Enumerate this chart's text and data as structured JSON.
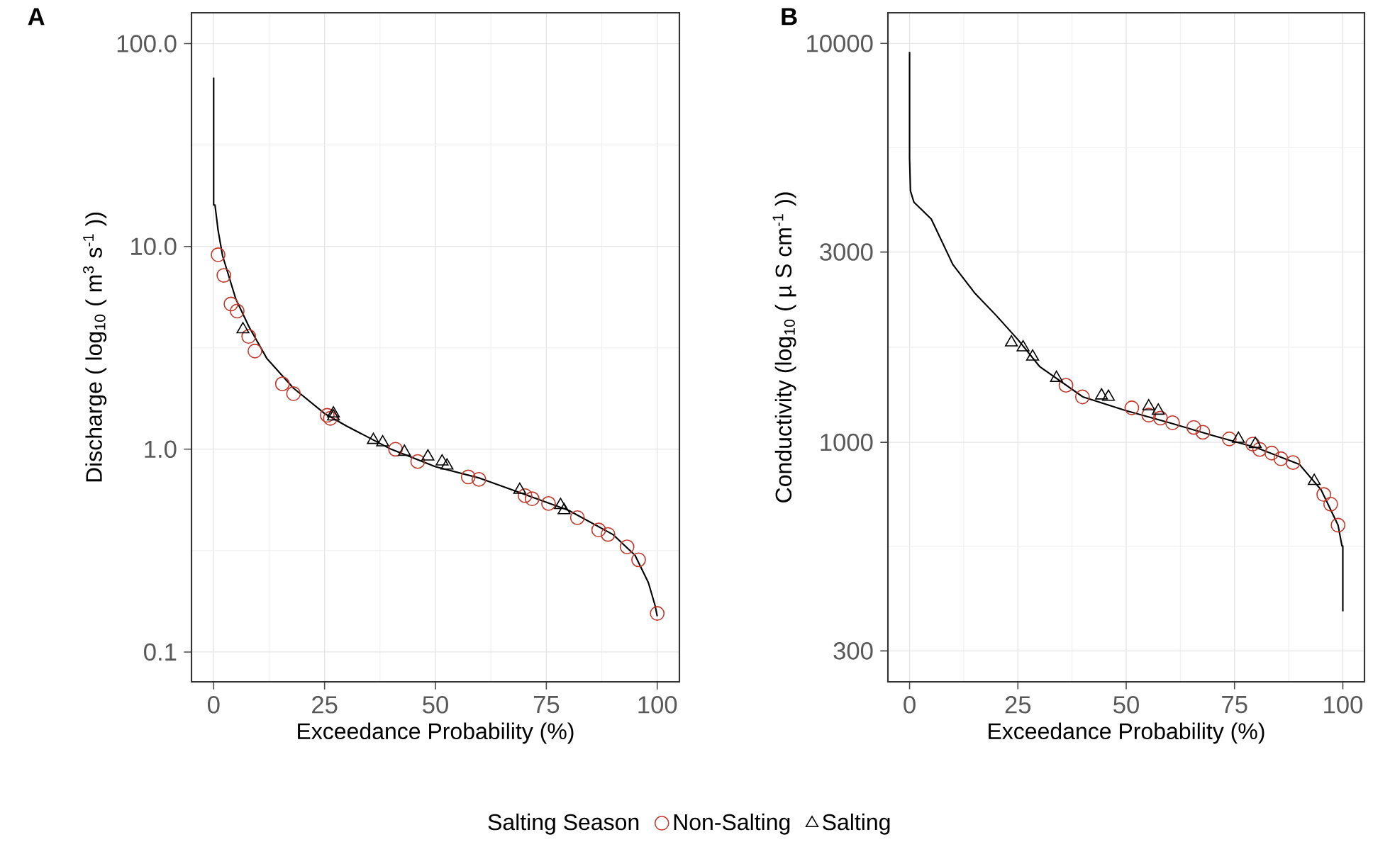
{
  "chart_data": [
    {
      "type": "line",
      "title": "A",
      "xlabel": "Exceedance Probability (%)",
      "ylabel": "Discharge ( log$_{10}$ ( m$^{3}$ s$^{-1}$ ))",
      "log": "y",
      "grid": true,
      "legend": "bottom",
      "legend_title": "Salting Season",
      "xlim": [
        -5,
        105
      ],
      "ylim": [
        0.0713,
        142
      ],
      "xticks": [
        0,
        25,
        50,
        75,
        100
      ],
      "yticks": [
        0.1,
        {
          "value": 1,
          "label": "1.0"
        },
        {
          "value": 10,
          "label": "10.0"
        },
        {
          "value": 100,
          "label": "100.0"
        }
      ],
      "series": [
        {
          "color": "#000000",
          "x": [
            0,
            0,
            0.3,
            1,
            2,
            5,
            8,
            12,
            18,
            25,
            30,
            40,
            50,
            60,
            70,
            80,
            90,
            95,
            98,
            99.5,
            100
          ],
          "values": [
            68,
            16,
            16,
            12,
            9,
            5.5,
            4,
            2.8,
            2,
            1.5,
            1.3,
            1.0,
            0.82,
            0.72,
            0.6,
            0.5,
            0.38,
            0.3,
            0.22,
            0.17,
            0.15
          ]
        },
        {
          "type": "scatter",
          "name": "Non-Salting",
          "color": "#c0392b",
          "marker": "circle",
          "x": [
            1,
            2.3,
            3.9,
            5.3,
            7.9,
            9.3,
            15.5,
            18,
            25.6,
            26.3,
            41,
            46,
            57.4,
            59.8,
            70.2,
            71.8,
            75.5,
            82,
            86.8,
            88.9,
            93.2,
            95.8,
            100
          ],
          "values": [
            9.1,
            7.2,
            5.2,
            4.8,
            3.6,
            3.05,
            2.1,
            1.88,
            1.47,
            1.42,
            1.0,
            0.87,
            0.73,
            0.71,
            0.59,
            0.57,
            0.54,
            0.46,
            0.4,
            0.38,
            0.33,
            0.285,
            0.155
          ]
        },
        {
          "type": "scatter",
          "name": "Salting",
          "color": "#000000",
          "marker": "triangle",
          "x": [
            6.6,
            27,
            27,
            36,
            38.1,
            43,
            48.3,
            51.5,
            52.6,
            69,
            78.2,
            79
          ],
          "values": [
            3.9,
            1.5,
            1.45,
            1.11,
            1.08,
            0.97,
            0.92,
            0.87,
            0.83,
            0.63,
            0.53,
            0.5
          ]
        }
      ]
    },
    {
      "type": "line",
      "title": "B",
      "xlabel": "Exceedance Probability (%)",
      "ylabel": "Conductivity (log$_{10}$ ( µ S cm$^{-1}$ ))",
      "log": "y",
      "grid": true,
      "xlim": [
        -5,
        105
      ],
      "ylim": [
        251,
        11940
      ],
      "xticks": [
        0,
        25,
        50,
        75,
        100
      ],
      "yticks": [
        300,
        1000,
        3000,
        10000
      ],
      "series": [
        {
          "color": "#000000",
          "x": [
            0,
            0,
            0.2,
            1,
            5,
            10,
            15,
            20,
            25,
            30,
            40,
            50,
            60,
            70,
            80,
            90,
            95,
            98.9,
            99.8,
            100,
            100
          ],
          "values": [
            9520,
            5150,
            4270,
            4000,
            3630,
            2790,
            2370,
            2080,
            1810,
            1550,
            1300,
            1200,
            1120,
            1040,
            970,
            880,
            760,
            620,
            550,
            550,
            377
          ]
        },
        {
          "type": "scatter",
          "color": "#c0392b",
          "marker": "circle",
          "x": [
            36.1,
            39.9,
            51.3,
            55.2,
            57.9,
            60.7,
            65.6,
            67.7,
            73.8,
            79.2,
            80.8,
            83.6,
            85.7,
            88.5,
            95.6,
            97.2,
            98.9
          ],
          "values": [
            1390,
            1300,
            1220,
            1170,
            1150,
            1120,
            1090,
            1060,
            1020,
            990,
            960,
            940,
            910,
            890,
            740,
            700,
            620
          ]
        },
        {
          "type": "scatter",
          "color": "#000000",
          "marker": "triangle",
          "x": [
            23.5,
            26.2,
            28.4,
            33.9,
            44.3,
            45.9,
            55.2,
            57.4,
            75.9,
            79.8,
            93.4
          ],
          "values": [
            1780,
            1730,
            1640,
            1450,
            1310,
            1300,
            1230,
            1200,
            1020,
            990,
            800
          ]
        }
      ]
    }
  ]
}
